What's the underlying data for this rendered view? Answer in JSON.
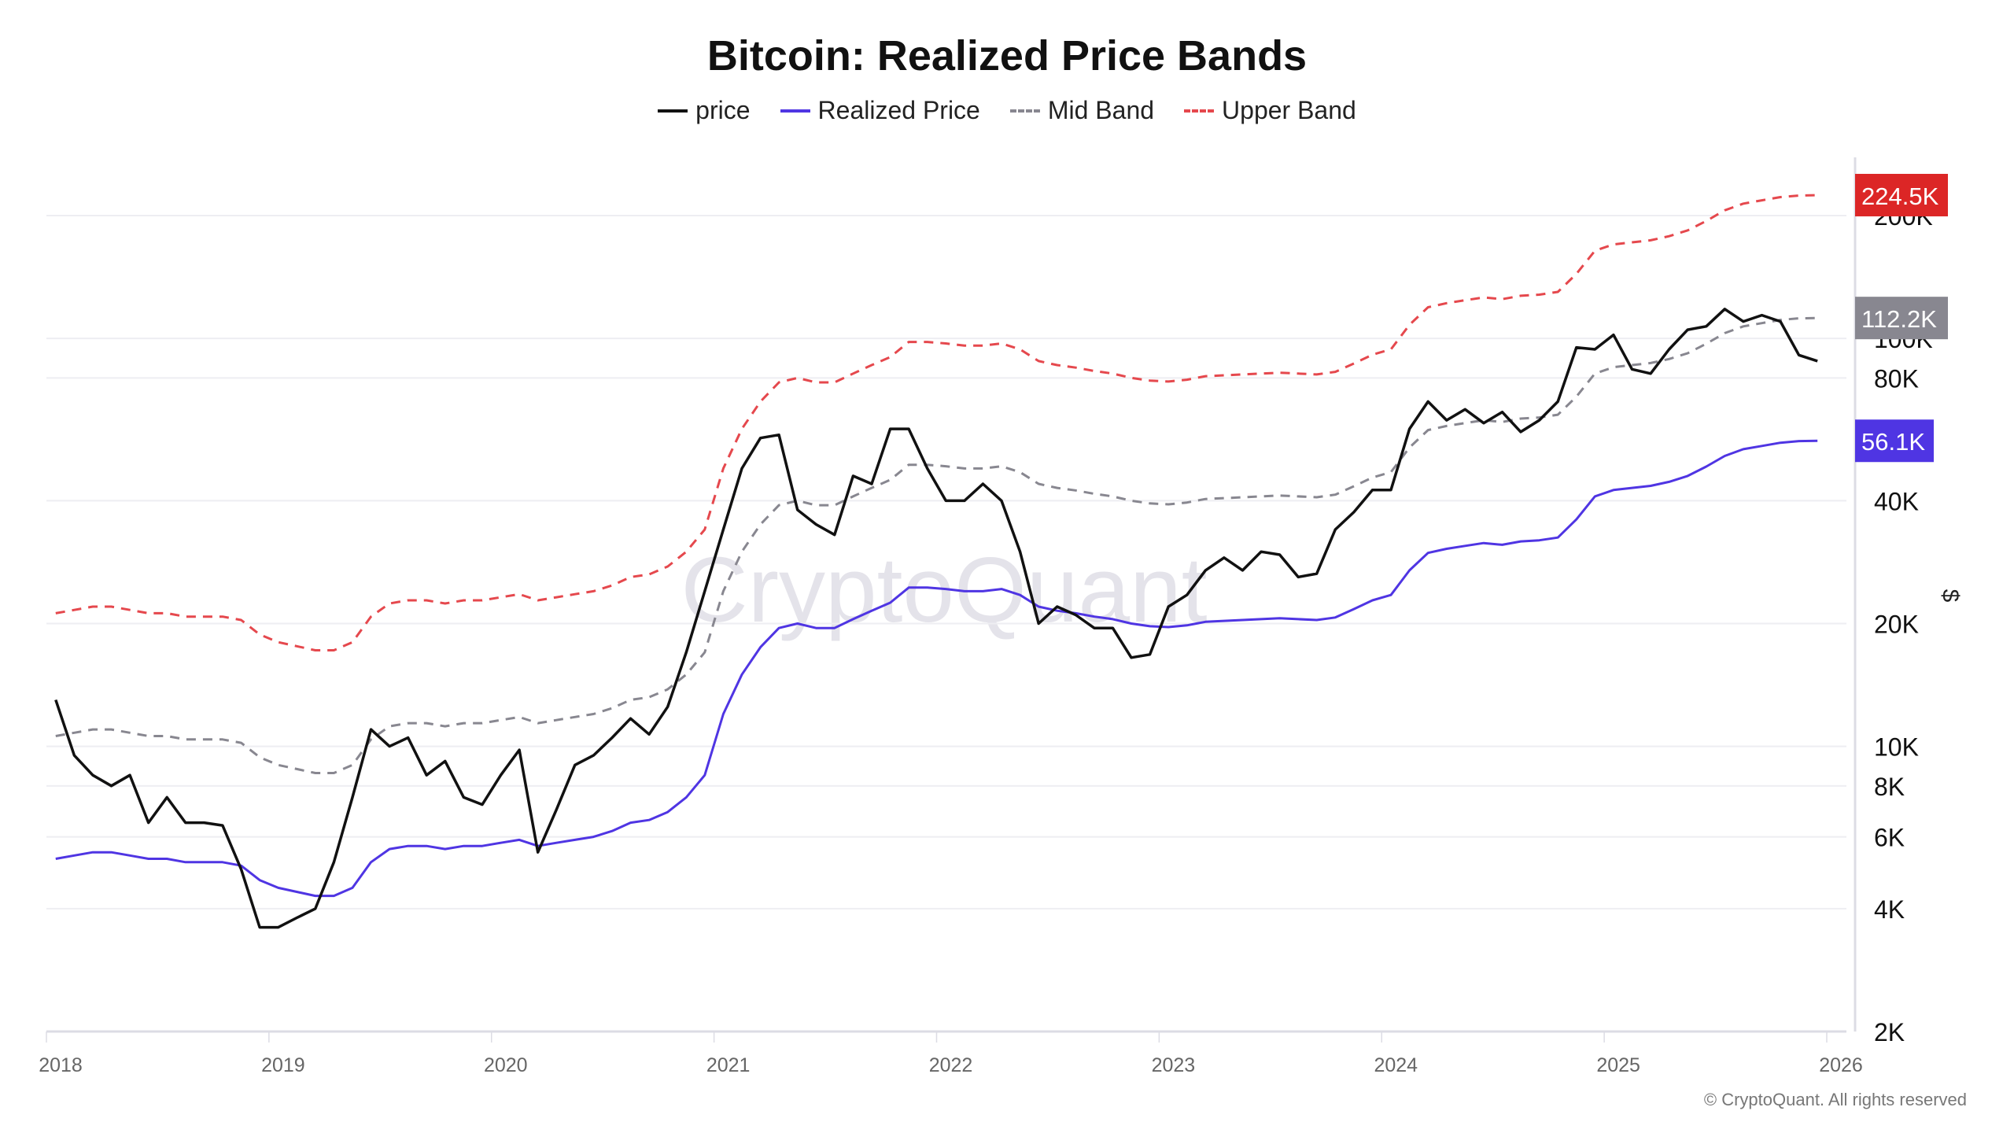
{
  "chart_data": {
    "type": "line",
    "title": "Bitcoin: Realized Price Bands",
    "ylabel": "$",
    "yscale": "log",
    "ylim": [
      2000,
      260000
    ],
    "xlim": [
      2018,
      2026
    ],
    "grid": true,
    "legend_placement": "top-center",
    "watermark": "CryptoQuant",
    "copyright": "© CryptoQuant. All rights reserved",
    "x_ticks": [
      "2018",
      "2019",
      "2020",
      "2021",
      "2022",
      "2023",
      "2024",
      "2025",
      "2026"
    ],
    "y_ticks": [
      {
        "value": 2000,
        "label": "2K"
      },
      {
        "value": 4000,
        "label": "4K"
      },
      {
        "value": 6000,
        "label": "6K"
      },
      {
        "value": 8000,
        "label": "8K"
      },
      {
        "value": 10000,
        "label": "10K"
      },
      {
        "value": 20000,
        "label": "20K"
      },
      {
        "value": 40000,
        "label": "40K"
      },
      {
        "value": 80000,
        "label": "80K"
      },
      {
        "value": 100000,
        "label": "100K"
      },
      {
        "value": 200000,
        "label": "200K"
      }
    ],
    "x_start_month": "2018-01",
    "series": [
      {
        "name": "price",
        "color": "#111111",
        "dash": false,
        "last_label": "",
        "values": [
          13000,
          9500,
          8500,
          8000,
          8500,
          6500,
          7500,
          6500,
          6500,
          6400,
          5000,
          3600,
          3600,
          3800,
          4000,
          5200,
          7500,
          11000,
          10000,
          10500,
          8500,
          9200,
          7500,
          7200,
          8500,
          9800,
          5500,
          7000,
          9000,
          9500,
          10500,
          11700,
          10700,
          12500,
          17000,
          24000,
          34000,
          48000,
          57000,
          58000,
          38000,
          35000,
          33000,
          46000,
          44000,
          60000,
          60000,
          48000,
          40000,
          40000,
          44000,
          40000,
          30000,
          20000,
          22000,
          21000,
          19500,
          19500,
          16500,
          16800,
          22000,
          23500,
          27000,
          29000,
          27000,
          30000,
          29500,
          26000,
          26500,
          34000,
          37500,
          42500,
          42500,
          60000,
          70000,
          63000,
          67000,
          62000,
          66000,
          59000,
          63000,
          70000,
          95000,
          94000,
          102000,
          84000,
          82000,
          94000,
          105000,
          107000,
          118000,
          110000,
          114000,
          110000,
          91000,
          88000
        ]
      },
      {
        "name": "Realized Price",
        "color": "#4f35e3",
        "dash": false,
        "last_label": "56.1K",
        "values": [
          5300,
          5400,
          5500,
          5500,
          5400,
          5300,
          5300,
          5200,
          5200,
          5200,
          5100,
          4700,
          4500,
          4400,
          4300,
          4300,
          4500,
          5200,
          5600,
          5700,
          5700,
          5600,
          5700,
          5700,
          5800,
          5900,
          5700,
          5800,
          5900,
          6000,
          6200,
          6500,
          6600,
          6900,
          7500,
          8500,
          12000,
          15000,
          17500,
          19500,
          20000,
          19500,
          19500,
          20500,
          21500,
          22500,
          24500,
          24500,
          24300,
          24000,
          24000,
          24300,
          23500,
          22000,
          21500,
          21200,
          20800,
          20500,
          20000,
          19700,
          19600,
          19800,
          20200,
          20300,
          20400,
          20500,
          20600,
          20500,
          20400,
          20700,
          21700,
          22800,
          23500,
          27000,
          29800,
          30500,
          31000,
          31500,
          31200,
          31800,
          32000,
          32500,
          36000,
          41000,
          42500,
          43000,
          43500,
          44500,
          46000,
          48500,
          51500,
          53500,
          54500,
          55500,
          56000,
          56100
        ]
      },
      {
        "name": "Mid Band",
        "color": "#888790",
        "dash": true,
        "last_label": "112.2K",
        "values": [
          10600,
          10800,
          11000,
          11000,
          10800,
          10600,
          10600,
          10400,
          10400,
          10400,
          10200,
          9400,
          9000,
          8800,
          8600,
          8600,
          9000,
          10400,
          11200,
          11400,
          11400,
          11200,
          11400,
          11400,
          11600,
          11800,
          11400,
          11600,
          11800,
          12000,
          12400,
          13000,
          13200,
          13800,
          15000,
          17000,
          24000,
          30000,
          35000,
          39000,
          40000,
          39000,
          39000,
          41000,
          43000,
          45000,
          49000,
          49000,
          48600,
          48000,
          48000,
          48600,
          47000,
          44000,
          43000,
          42400,
          41600,
          41000,
          40000,
          39400,
          39200,
          39600,
          40400,
          40600,
          40800,
          41000,
          41200,
          41000,
          40800,
          41400,
          43400,
          45600,
          47000,
          54000,
          59600,
          61000,
          62000,
          63000,
          62400,
          63600,
          64000,
          65000,
          72000,
          82000,
          85000,
          86000,
          87000,
          89000,
          92000,
          97000,
          103000,
          107000,
          109000,
          111000,
          112000,
          112200
        ]
      },
      {
        "name": "Upper Band",
        "color": "#e5484d",
        "dash": true,
        "last_label": "224.5K",
        "values": [
          21200,
          21600,
          22000,
          22000,
          21600,
          21200,
          21200,
          20800,
          20800,
          20800,
          20400,
          18800,
          18000,
          17600,
          17200,
          17200,
          18000,
          20800,
          22400,
          22800,
          22800,
          22400,
          22800,
          22800,
          23200,
          23600,
          22800,
          23200,
          23600,
          24000,
          24800,
          26000,
          26400,
          27600,
          30000,
          34000,
          48000,
          60000,
          70000,
          78000,
          80000,
          78000,
          78000,
          82000,
          86000,
          90000,
          98000,
          98000,
          97200,
          96000,
          96000,
          97200,
          94000,
          88000,
          86000,
          84800,
          83200,
          82000,
          80000,
          78800,
          78400,
          79200,
          80800,
          81200,
          81600,
          82000,
          82400,
          82000,
          81600,
          82800,
          86800,
          91200,
          94000,
          108000,
          119200,
          122000,
          124000,
          126000,
          124800,
          127200,
          128000,
          130000,
          144000,
          164000,
          170000,
          172000,
          174000,
          178000,
          184000,
          194000,
          206000,
          214000,
          218000,
          222000,
          224000,
          224500
        ]
      }
    ],
    "last_label_colors": {
      "Upper Band": "#dc2626",
      "Mid Band": "#888790",
      "Realized Price": "#4f35e3"
    }
  }
}
